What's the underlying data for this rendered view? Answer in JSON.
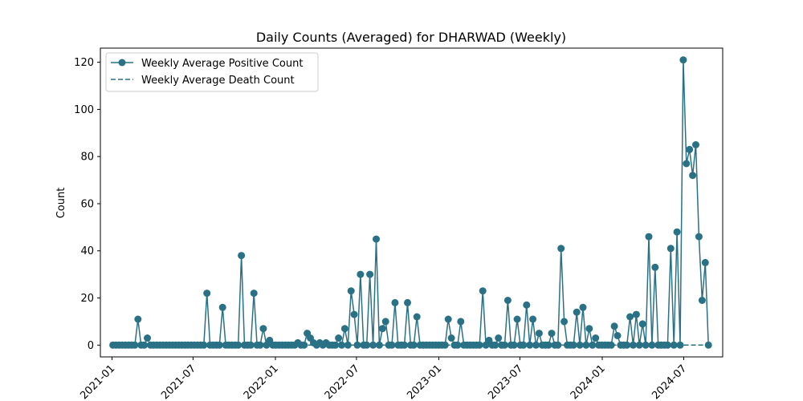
{
  "chart_data": {
    "type": "line",
    "title": "Daily Counts (Averaged) for DHARWAD (Weekly)",
    "xlabel": "",
    "ylabel": "Count",
    "x_tick_labels": [
      "2021-01",
      "2021-07",
      "2022-01",
      "2022-07",
      "2023-01",
      "2023-07",
      "2024-01",
      "2024-07"
    ],
    "y_ticks": [
      0,
      20,
      40,
      60,
      80,
      100,
      120
    ],
    "ylim": [
      -5,
      126
    ],
    "xlim": [
      "2020-12-06",
      "2024-09-26"
    ],
    "grid": false,
    "legend_position": "top-left",
    "colors": {
      "series": "#2a7186",
      "axes": "#000000",
      "background": "#ffffff"
    },
    "series": [
      {
        "name": "Weekly Average Positive Count",
        "style": "solid-line-markers",
        "points": [
          [
            "2021-01-03",
            0
          ],
          [
            "2021-01-10",
            0
          ],
          [
            "2021-01-17",
            0
          ],
          [
            "2021-01-24",
            0
          ],
          [
            "2021-01-31",
            0
          ],
          [
            "2021-02-07",
            0
          ],
          [
            "2021-02-14",
            0
          ],
          [
            "2021-02-21",
            0
          ],
          [
            "2021-02-28",
            11
          ],
          [
            "2021-03-07",
            0
          ],
          [
            "2021-03-14",
            0
          ],
          [
            "2021-03-21",
            3
          ],
          [
            "2021-03-28",
            0
          ],
          [
            "2021-04-04",
            0
          ],
          [
            "2021-04-11",
            0
          ],
          [
            "2021-04-18",
            0
          ],
          [
            "2021-04-25",
            0
          ],
          [
            "2021-05-02",
            0
          ],
          [
            "2021-05-09",
            0
          ],
          [
            "2021-05-16",
            0
          ],
          [
            "2021-05-23",
            0
          ],
          [
            "2021-05-30",
            0
          ],
          [
            "2021-06-06",
            0
          ],
          [
            "2021-06-13",
            0
          ],
          [
            "2021-06-20",
            0
          ],
          [
            "2021-06-27",
            0
          ],
          [
            "2021-07-04",
            0
          ],
          [
            "2021-07-11",
            0
          ],
          [
            "2021-07-18",
            0
          ],
          [
            "2021-07-25",
            0
          ],
          [
            "2021-08-01",
            22
          ],
          [
            "2021-08-08",
            0
          ],
          [
            "2021-08-15",
            0
          ],
          [
            "2021-08-22",
            0
          ],
          [
            "2021-08-29",
            0
          ],
          [
            "2021-09-05",
            16
          ],
          [
            "2021-09-12",
            0
          ],
          [
            "2021-09-19",
            0
          ],
          [
            "2021-09-26",
            0
          ],
          [
            "2021-10-03",
            0
          ],
          [
            "2021-10-10",
            0
          ],
          [
            "2021-10-17",
            38
          ],
          [
            "2021-10-24",
            0
          ],
          [
            "2021-10-31",
            0
          ],
          [
            "2021-11-07",
            0
          ],
          [
            "2021-11-14",
            22
          ],
          [
            "2021-11-21",
            0
          ],
          [
            "2021-11-28",
            0
          ],
          [
            "2021-12-05",
            7
          ],
          [
            "2021-12-12",
            0
          ],
          [
            "2021-12-19",
            2
          ],
          [
            "2021-12-26",
            0
          ],
          [
            "2022-01-02",
            0
          ],
          [
            "2022-01-09",
            0
          ],
          [
            "2022-01-16",
            0
          ],
          [
            "2022-01-23",
            0
          ],
          [
            "2022-01-30",
            0
          ],
          [
            "2022-02-06",
            0
          ],
          [
            "2022-02-13",
            0
          ],
          [
            "2022-02-20",
            1
          ],
          [
            "2022-02-27",
            0
          ],
          [
            "2022-03-06",
            0
          ],
          [
            "2022-03-13",
            5
          ],
          [
            "2022-03-20",
            3
          ],
          [
            "2022-03-27",
            1
          ],
          [
            "2022-04-03",
            0
          ],
          [
            "2022-04-10",
            1
          ],
          [
            "2022-04-17",
            0
          ],
          [
            "2022-04-24",
            1
          ],
          [
            "2022-05-01",
            0
          ],
          [
            "2022-05-08",
            0
          ],
          [
            "2022-05-15",
            0
          ],
          [
            "2022-05-22",
            3
          ],
          [
            "2022-05-29",
            0
          ],
          [
            "2022-06-05",
            7
          ],
          [
            "2022-06-12",
            0
          ],
          [
            "2022-06-19",
            23
          ],
          [
            "2022-06-26",
            13
          ],
          [
            "2022-07-03",
            0
          ],
          [
            "2022-07-10",
            30
          ],
          [
            "2022-07-17",
            0
          ],
          [
            "2022-07-24",
            0
          ],
          [
            "2022-07-31",
            30
          ],
          [
            "2022-08-07",
            0
          ],
          [
            "2022-08-14",
            45
          ],
          [
            "2022-08-21",
            0
          ],
          [
            "2022-08-28",
            7
          ],
          [
            "2022-09-04",
            10
          ],
          [
            "2022-09-11",
            0
          ],
          [
            "2022-09-18",
            0
          ],
          [
            "2022-09-25",
            18
          ],
          [
            "2022-10-02",
            0
          ],
          [
            "2022-10-09",
            0
          ],
          [
            "2022-10-16",
            0
          ],
          [
            "2022-10-23",
            18
          ],
          [
            "2022-10-30",
            0
          ],
          [
            "2022-11-06",
            0
          ],
          [
            "2022-11-13",
            12
          ],
          [
            "2022-11-20",
            0
          ],
          [
            "2022-11-27",
            0
          ],
          [
            "2022-12-04",
            0
          ],
          [
            "2022-12-11",
            0
          ],
          [
            "2022-12-18",
            0
          ],
          [
            "2022-12-25",
            0
          ],
          [
            "2023-01-01",
            0
          ],
          [
            "2023-01-08",
            0
          ],
          [
            "2023-01-15",
            0
          ],
          [
            "2023-01-22",
            11
          ],
          [
            "2023-01-29",
            3
          ],
          [
            "2023-02-05",
            0
          ],
          [
            "2023-02-12",
            0
          ],
          [
            "2023-02-19",
            10
          ],
          [
            "2023-02-26",
            0
          ],
          [
            "2023-03-05",
            0
          ],
          [
            "2023-03-12",
            0
          ],
          [
            "2023-03-19",
            0
          ],
          [
            "2023-03-26",
            0
          ],
          [
            "2023-04-02",
            0
          ],
          [
            "2023-04-09",
            23
          ],
          [
            "2023-04-16",
            0
          ],
          [
            "2023-04-23",
            2
          ],
          [
            "2023-04-30",
            0
          ],
          [
            "2023-05-07",
            0
          ],
          [
            "2023-05-14",
            3
          ],
          [
            "2023-05-21",
            0
          ],
          [
            "2023-05-28",
            0
          ],
          [
            "2023-06-04",
            19
          ],
          [
            "2023-06-11",
            0
          ],
          [
            "2023-06-18",
            0
          ],
          [
            "2023-06-25",
            11
          ],
          [
            "2023-07-02",
            0
          ],
          [
            "2023-07-09",
            0
          ],
          [
            "2023-07-16",
            17
          ],
          [
            "2023-07-23",
            0
          ],
          [
            "2023-07-30",
            11
          ],
          [
            "2023-08-06",
            0
          ],
          [
            "2023-08-13",
            5
          ],
          [
            "2023-08-20",
            0
          ],
          [
            "2023-08-27",
            0
          ],
          [
            "2023-09-03",
            0
          ],
          [
            "2023-09-10",
            5
          ],
          [
            "2023-09-17",
            0
          ],
          [
            "2023-09-24",
            0
          ],
          [
            "2023-10-01",
            41
          ],
          [
            "2023-10-08",
            10
          ],
          [
            "2023-10-15",
            0
          ],
          [
            "2023-10-22",
            0
          ],
          [
            "2023-10-29",
            0
          ],
          [
            "2023-11-05",
            14
          ],
          [
            "2023-11-12",
            0
          ],
          [
            "2023-11-19",
            16
          ],
          [
            "2023-11-26",
            0
          ],
          [
            "2023-12-03",
            7
          ],
          [
            "2023-12-10",
            0
          ],
          [
            "2023-12-17",
            3
          ],
          [
            "2023-12-24",
            0
          ],
          [
            "2023-12-31",
            0
          ],
          [
            "2024-01-07",
            0
          ],
          [
            "2024-01-14",
            0
          ],
          [
            "2024-01-21",
            0
          ],
          [
            "2024-01-28",
            8
          ],
          [
            "2024-02-04",
            4
          ],
          [
            "2024-02-11",
            0
          ],
          [
            "2024-02-18",
            0
          ],
          [
            "2024-02-25",
            0
          ],
          [
            "2024-03-03",
            12
          ],
          [
            "2024-03-10",
            0
          ],
          [
            "2024-03-17",
            13
          ],
          [
            "2024-03-24",
            0
          ],
          [
            "2024-03-31",
            9
          ],
          [
            "2024-04-07",
            0
          ],
          [
            "2024-04-14",
            46
          ],
          [
            "2024-04-21",
            0
          ],
          [
            "2024-04-28",
            33
          ],
          [
            "2024-05-05",
            0
          ],
          [
            "2024-05-12",
            0
          ],
          [
            "2024-05-19",
            0
          ],
          [
            "2024-05-26",
            0
          ],
          [
            "2024-06-02",
            41
          ],
          [
            "2024-06-09",
            0
          ],
          [
            "2024-06-16",
            48
          ],
          [
            "2024-06-23",
            0
          ],
          [
            "2024-06-30",
            121
          ],
          [
            "2024-07-07",
            77
          ],
          [
            "2024-07-14",
            83
          ],
          [
            "2024-07-21",
            72
          ],
          [
            "2024-07-28",
            85
          ],
          [
            "2024-08-04",
            46
          ],
          [
            "2024-08-11",
            19
          ],
          [
            "2024-08-18",
            35
          ],
          [
            "2024-08-25",
            0
          ]
        ]
      },
      {
        "name": "Weekly Average Death Count",
        "style": "dashed-line",
        "points": [
          [
            "2021-01-03",
            0
          ],
          [
            "2024-08-25",
            0
          ]
        ]
      }
    ]
  }
}
